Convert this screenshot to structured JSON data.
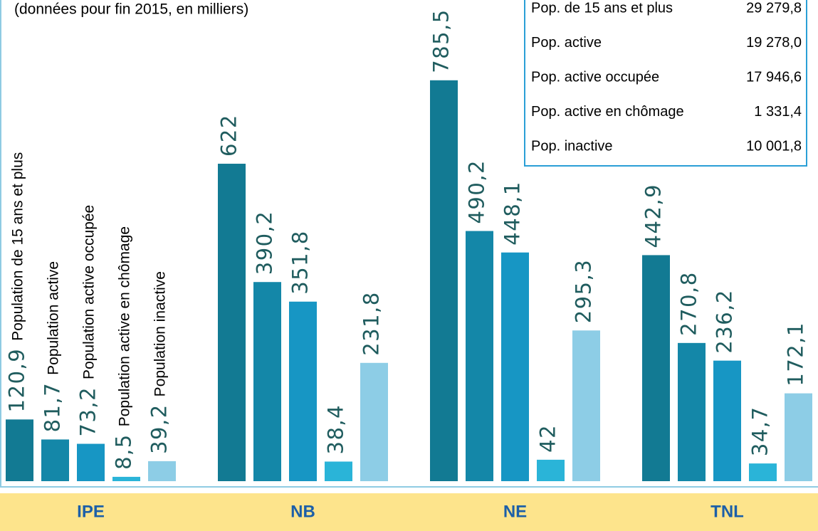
{
  "chart_data": {
    "type": "bar",
    "subtitle": "(données pour fin 2015, en milliers)",
    "categories": [
      "IPE",
      "NB",
      "NE",
      "TNL"
    ],
    "series": [
      {
        "name": "Population de 15 ans et plus",
        "color": "#127a93",
        "values": [
          120.9,
          622,
          785.5,
          442.9
        ],
        "value_labels": [
          "120,9",
          "622",
          "785,5",
          "442,9"
        ]
      },
      {
        "name": "Population active",
        "color": "#1487a8",
        "values": [
          81.7,
          390.2,
          490.2,
          270.8
        ],
        "value_labels": [
          "81,7",
          "390,2",
          "490,2",
          "270,8"
        ]
      },
      {
        "name": "Population active occupée",
        "color": "#1796c4",
        "values": [
          73.2,
          351.8,
          448.1,
          236.2
        ],
        "value_labels": [
          "73,2",
          "351,8",
          "448,1",
          "236,2"
        ]
      },
      {
        "name": "Population active en chômage",
        "color": "#2ab4d8",
        "values": [
          8.5,
          38.4,
          42,
          34.7
        ],
        "value_labels": [
          "8,5",
          "38,4",
          "42",
          "34,7"
        ]
      },
      {
        "name": "Population inactive",
        "color": "#8dcde6",
        "values": [
          39.2,
          231.8,
          295.3,
          172.1
        ],
        "value_labels": [
          "39,2",
          "231,8",
          "295,3",
          "172,1"
        ]
      }
    ]
  },
  "table": {
    "rows": [
      [
        "Pop. de 15 ans et plus",
        "29 279,8"
      ],
      [
        "Pop. active",
        "19 278,0"
      ],
      [
        "Pop. active occupée",
        "17 946,6"
      ],
      [
        "Pop. active en chômage",
        "1 331,4"
      ],
      [
        "Pop. inactive",
        "10 001,8"
      ]
    ]
  }
}
